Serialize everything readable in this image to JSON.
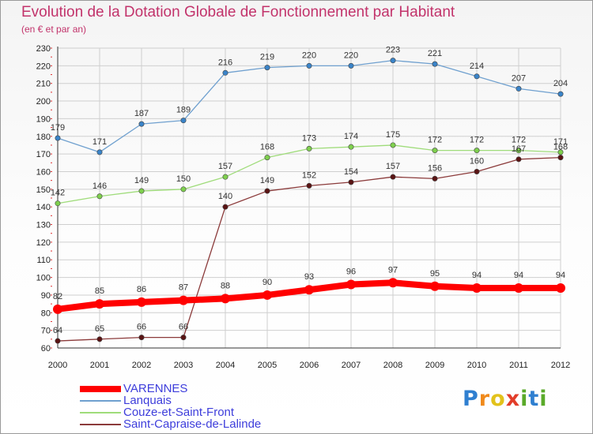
{
  "title": "Evolution de la Dotation Globale de Fonctionnement par Habitant",
  "subtitle": "(en € et par an)",
  "colors": {
    "title": "#c2336b",
    "legend_text": "#3d3ddb",
    "grid": "#cfcfcf"
  },
  "chart_data": {
    "type": "line",
    "title": "Evolution de la Dotation Globale de Fonctionnement par Habitant",
    "subtitle": "(en € et par an)",
    "x": [
      "2000",
      "2001",
      "2002",
      "2003",
      "2004",
      "2005",
      "2006",
      "2007",
      "2008",
      "2009",
      "2010",
      "2011",
      "2012"
    ],
    "ylim": [
      60,
      230
    ],
    "yticks": [
      60,
      70,
      80,
      90,
      100,
      110,
      120,
      130,
      140,
      150,
      160,
      170,
      180,
      190,
      200,
      210,
      220,
      230
    ],
    "grid": true,
    "legend_position": "bottom-left",
    "series": [
      {
        "name": "Lanquais",
        "color": "#6fa0cf",
        "marker": "#3a84c9",
        "values": [
          179,
          171,
          187,
          189,
          216,
          219,
          220,
          220,
          223,
          221,
          214,
          207,
          204
        ]
      },
      {
        "name": "Couze-et-Saint-Front",
        "color": "#9fdc7a",
        "marker": "#7fd04e",
        "values": [
          142,
          146,
          149,
          150,
          157,
          168,
          173,
          174,
          175,
          172,
          172,
          172,
          171
        ]
      },
      {
        "name": "Saint-Capraise-de-Lalinde",
        "color": "#8b3a3a",
        "marker": "#5a1414",
        "values": [
          64,
          65,
          66,
          66,
          140,
          149,
          152,
          154,
          157,
          156,
          160,
          167,
          168
        ]
      },
      {
        "name": "VARENNES",
        "color": "#ff0000",
        "marker": "#ff0000",
        "values": [
          82,
          85,
          86,
          87,
          88,
          90,
          93,
          96,
          97,
          95,
          94,
          94,
          94
        ]
      }
    ]
  },
  "legend": [
    {
      "name": "VARENNES",
      "color": "#ff0000"
    },
    {
      "name": "Lanquais",
      "color": "#6fa0cf"
    },
    {
      "name": "Couze-et-Saint-Front",
      "color": "#9fdc7a"
    },
    {
      "name": "Saint-Capraise-de-Lalinde",
      "color": "#8b3a3a"
    }
  ],
  "logo": {
    "letters": [
      "P",
      "r",
      "o",
      "x",
      "i",
      "t",
      "i"
    ],
    "colors": [
      "#2f7fd0",
      "#f08a1c",
      "#e2c21b",
      "#e23d2a",
      "#5aaa2a",
      "#2f7fd0",
      "#5aaa2a"
    ]
  }
}
